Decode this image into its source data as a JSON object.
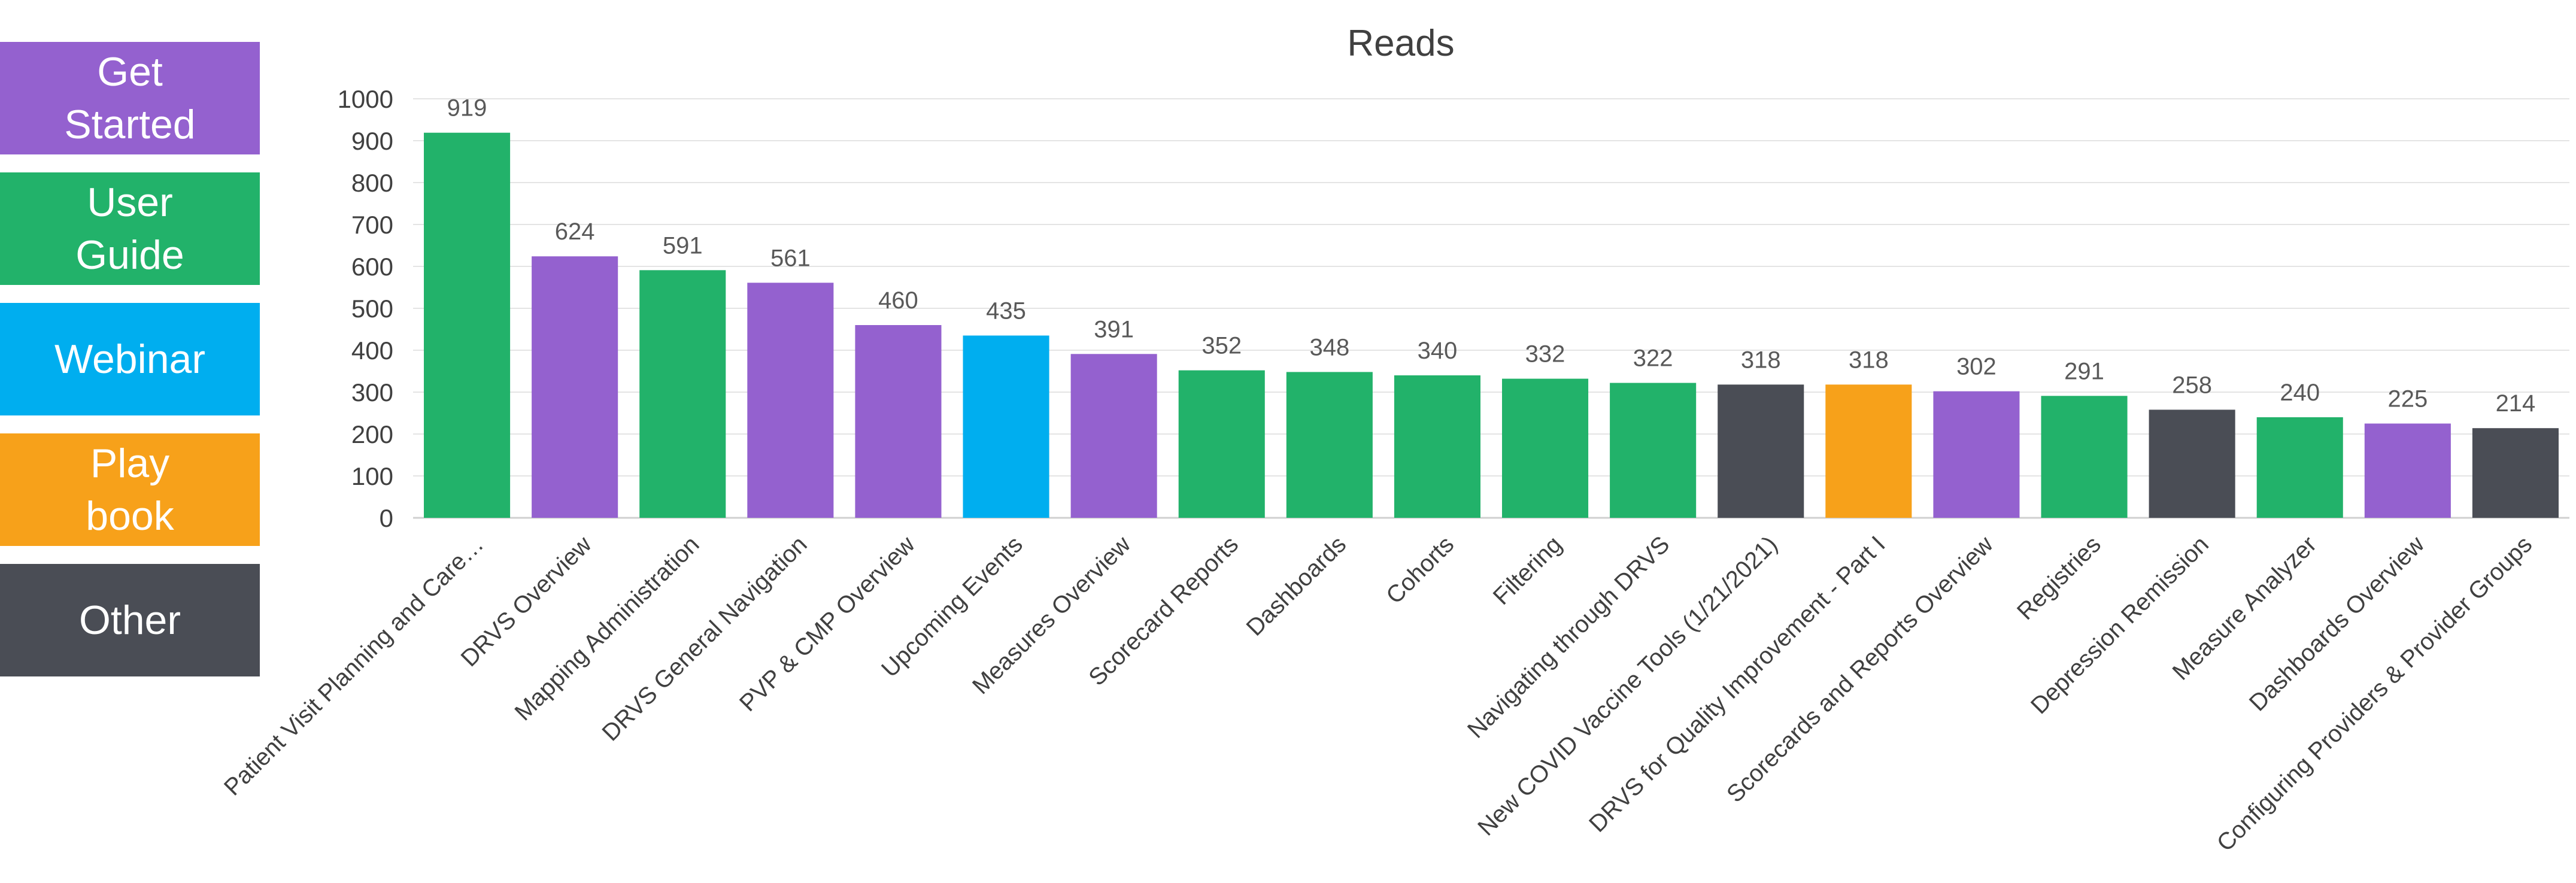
{
  "legend": [
    {
      "id": "get-started",
      "lines": [
        "Get",
        "Started"
      ],
      "color": "#9461CF"
    },
    {
      "id": "user-guide",
      "lines": [
        "User",
        "Guide"
      ],
      "color": "#22B26A"
    },
    {
      "id": "webinar",
      "lines": [
        "Webinar"
      ],
      "color": "#00AEEF"
    },
    {
      "id": "playbook",
      "lines": [
        "Play",
        "book"
      ],
      "color": "#F7A11A"
    },
    {
      "id": "other",
      "lines": [
        "Other"
      ],
      "color": "#4A4D55"
    }
  ],
  "chart_data": {
    "type": "bar",
    "title": "Reads",
    "xlabel": "",
    "ylabel": "",
    "ylim": [
      0,
      1000
    ],
    "yticks": [
      0,
      100,
      200,
      300,
      400,
      500,
      600,
      700,
      800,
      900,
      1000
    ],
    "grid": true,
    "categories": [
      "Patient Visit Planning and Care…",
      "DRVS Overview",
      "Mapping Administration",
      "DRVS General Navigation",
      "PVP & CMP Overview",
      "Upcoming Events",
      "Measures Overview",
      "Scorecard Reports",
      "Dashboards",
      "Cohorts",
      "Filtering",
      "Navigating through DRVS",
      "New COVID Vaccine Tools (1/21/2021)",
      "DRVS for Quality Improvement - Part I",
      "Scorecards and Reports Overview",
      "Registries",
      "Depression Remission",
      "Measure Analyzer",
      "Dashboards Overview",
      "Configuring Providers & Provider Groups"
    ],
    "values": [
      919,
      624,
      591,
      561,
      460,
      435,
      391,
      352,
      348,
      340,
      332,
      322,
      318,
      318,
      302,
      291,
      258,
      240,
      225,
      214
    ],
    "groups": [
      "user-guide",
      "get-started",
      "user-guide",
      "get-started",
      "get-started",
      "webinar",
      "get-started",
      "user-guide",
      "user-guide",
      "user-guide",
      "user-guide",
      "user-guide",
      "other",
      "playbook",
      "get-started",
      "user-guide",
      "other",
      "user-guide",
      "get-started",
      "other"
    ]
  }
}
